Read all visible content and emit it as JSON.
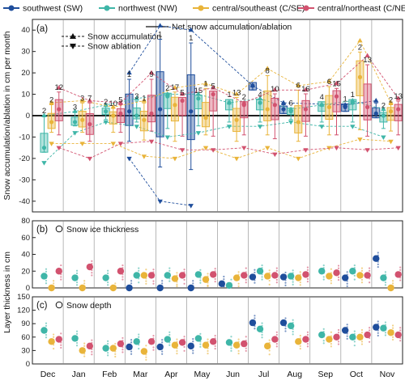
{
  "legend": {
    "regions": [
      {
        "label": "southwest (SW)",
        "color": "#1f4e9c"
      },
      {
        "label": "northwest (NW)",
        "color": "#3fb6a8"
      },
      {
        "label": "central/southeast (C/SE)",
        "color": "#e9b43a"
      },
      {
        "label": "central/northeast (C/NE)",
        "color": "#d2526f"
      }
    ],
    "line_items": [
      {
        "label": "Net snow accumulation/ablation",
        "style": "solid"
      },
      {
        "label": "Snow accumulation",
        "style": "dashed-up"
      },
      {
        "label": "Snow ablation",
        "style": "dashed-down"
      }
    ]
  },
  "chart_data": [
    {
      "panel": "(a)",
      "type": "box",
      "ylabel": "Snow accumulation/ablation in cm per month",
      "ylim": [
        -45,
        45
      ],
      "yticks": [
        -40,
        -30,
        -20,
        -10,
        0,
        10,
        20,
        30,
        40
      ],
      "categories": [
        "Dec",
        "Jan",
        "Feb",
        "Mar",
        "Apr",
        "May",
        "Jun",
        "Jul",
        "Aug",
        "Sep",
        "Oct",
        "Nov"
      ],
      "series": [
        {
          "region": "SW",
          "median": [
            null,
            null,
            null,
            2,
            3,
            2,
            null,
            14,
            3,
            null,
            4,
            1
          ],
          "accumulation": [
            null,
            null,
            null,
            20,
            42,
            40,
            null,
            14,
            6,
            null,
            5,
            7
          ],
          "ablation": [
            null,
            null,
            null,
            -20,
            -40,
            -42,
            null,
            null,
            null,
            null,
            null,
            null
          ],
          "n": [
            null,
            null,
            null,
            "1",
            "1",
            "1",
            null,
            null,
            null,
            null,
            "1",
            null
          ]
        },
        {
          "region": "NW",
          "median": [
            -15,
            -3,
            2,
            0,
            9,
            8,
            6,
            6,
            2,
            5,
            6,
            0
          ],
          "accumulation": [
            0,
            2,
            5,
            8,
            10,
            10,
            6,
            8,
            3,
            5,
            7,
            3
          ],
          "ablation": [
            -22,
            -8,
            -3,
            -5,
            -10,
            -8,
            -5,
            -5,
            -3,
            -5,
            -5,
            -10
          ],
          "n": [
            "2",
            "3",
            "2",
            "3",
            "2",
            "15",
            "1",
            "4",
            "6",
            "4",
            "1",
            "2"
          ]
        },
        {
          "region": "C/SE",
          "median": [
            -3,
            -2,
            0,
            -2,
            5,
            -1,
            -2,
            3,
            -3,
            4,
            18,
            2
          ],
          "accumulation": [
            6,
            7,
            4,
            7,
            13,
            15,
            10,
            22,
            14,
            16,
            35,
            6
          ],
          "ablation": [
            -13,
            -13,
            -13,
            -19,
            -20,
            -15,
            -20,
            -15,
            -20,
            -15,
            -11,
            -12
          ],
          "n": [
            "2",
            "3",
            "10",
            "1",
            "17",
            "1",
            "13",
            "8",
            "6",
            "6",
            "2",
            "2"
          ]
        },
        {
          "region": "C/NE",
          "median": [
            3,
            -4,
            1,
            1,
            7,
            10,
            5,
            5,
            3,
            9,
            4,
            3
          ],
          "accumulation": [
            13,
            7,
            6,
            20,
            10,
            13,
            6,
            12,
            12,
            15,
            28,
            8
          ],
          "ablation": [
            -15,
            -20,
            -13,
            -12,
            -16,
            -16,
            -15,
            -18,
            -16,
            -15,
            -16,
            -15
          ],
          "n": [
            "12",
            "7",
            "5",
            "9",
            "5",
            "5",
            "2",
            "10",
            "16",
            "15",
            "13",
            "13"
          ]
        }
      ]
    },
    {
      "panel": "(b)",
      "type": "scatter",
      "title": "Snow ice thickness",
      "ylim": [
        0,
        80
      ],
      "yticks": [
        0,
        20,
        40,
        60,
        80
      ],
      "categories": [
        "Dec",
        "Jan",
        "Feb",
        "Mar",
        "Apr",
        "May",
        "Jun",
        "Jul",
        "Aug",
        "Sep",
        "Oct",
        "Nov"
      ],
      "series": [
        {
          "region": "SW",
          "values": [
            null,
            null,
            null,
            0,
            0,
            0,
            5,
            13,
            13,
            null,
            12,
            35
          ]
        },
        {
          "region": "NW",
          "values": [
            14,
            12,
            12,
            15,
            15,
            16,
            3,
            20,
            14,
            20,
            20,
            12
          ]
        },
        {
          "region": "C/SE",
          "values": [
            0,
            0,
            0,
            15,
            11,
            10,
            12,
            14,
            12,
            14,
            15,
            0
          ]
        },
        {
          "region": "C/NE",
          "values": [
            20,
            25,
            20,
            15,
            15,
            16,
            15,
            15,
            16,
            18,
            15,
            16
          ]
        }
      ]
    },
    {
      "panel": "(c)",
      "type": "scatter",
      "title": "Snow depth",
      "ylim": [
        0,
        150
      ],
      "yticks": [
        0,
        30,
        60,
        90,
        120,
        150
      ],
      "categories": [
        "Dec",
        "Jan",
        "Feb",
        "Mar",
        "Apr",
        "May",
        "Jun",
        "Jul",
        "Aug",
        "Sep",
        "Oct",
        "Nov"
      ],
      "series": [
        {
          "region": "SW",
          "values": [
            null,
            null,
            null,
            38,
            38,
            40,
            null,
            92,
            92,
            null,
            75,
            82
          ]
        },
        {
          "region": "NW",
          "values": [
            75,
            57,
            35,
            50,
            55,
            57,
            48,
            78,
            85,
            65,
            60,
            80
          ]
        },
        {
          "region": "C/SE",
          "values": [
            50,
            30,
            35,
            28,
            42,
            42,
            42,
            40,
            50,
            55,
            60,
            70
          ]
        },
        {
          "region": "C/NE",
          "values": [
            55,
            40,
            45,
            50,
            48,
            50,
            45,
            55,
            55,
            60,
            65,
            65
          ]
        }
      ]
    }
  ],
  "shared_ylabel": "Layer thickness in cm"
}
